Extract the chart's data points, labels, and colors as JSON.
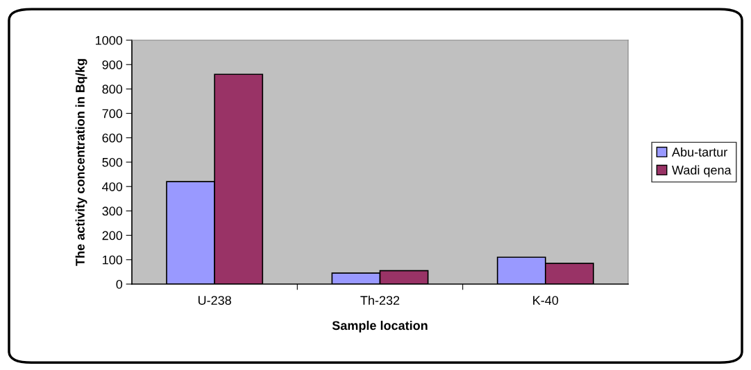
{
  "chart_data": {
    "type": "bar",
    "xlabel": "Sample location",
    "ylabel": "The activity concentration in Bq/kg",
    "categories": [
      "U-238",
      "Th-232",
      "K-40"
    ],
    "series": [
      {
        "name": "Abu-tartur",
        "color": "#9999ff",
        "values": [
          420,
          45,
          110
        ]
      },
      {
        "name": "Wadi qena",
        "color": "#993366",
        "values": [
          860,
          55,
          85
        ]
      }
    ],
    "ylim": [
      0,
      1000
    ],
    "yticks": [
      0,
      100,
      200,
      300,
      400,
      500,
      600,
      700,
      800,
      900,
      1000
    ],
    "grid": false,
    "legend": "right"
  }
}
